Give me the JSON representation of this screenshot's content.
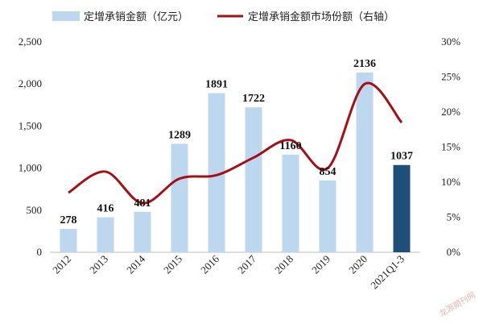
{
  "chart_data": {
    "type": "bar",
    "title": "",
    "categories": [
      "2012",
      "2013",
      "2014",
      "2015",
      "2016",
      "2017",
      "2018",
      "2019",
      "2020",
      "2021Q1-3"
    ],
    "series": [
      {
        "name": "定增承销金额（亿元）",
        "type": "bar",
        "axis": "left",
        "values": [
          278,
          416,
          481,
          1289,
          1891,
          1722,
          1160,
          854,
          2136,
          1037
        ],
        "data_labels": [
          "278",
          "416",
          "481",
          "1289",
          "1891",
          "1722",
          "1160",
          "854",
          "2136",
          "1037"
        ],
        "color": "#bdd7ee",
        "highlight_last_color": "#1f4e79"
      },
      {
        "name": "定增承销金额市场份额（右轴）",
        "type": "line",
        "axis": "right",
        "values": [
          8.5,
          11.5,
          7.0,
          10.5,
          11.0,
          13.5,
          16.0,
          12.0,
          24.0,
          18.5
        ],
        "color": "#a50f15"
      }
    ],
    "y_left": {
      "ylim": [
        0,
        2500
      ],
      "ticks": [
        0,
        500,
        1000,
        1500,
        2000,
        2500
      ],
      "tick_labels": [
        "0",
        "500",
        "1,000",
        "1,500",
        "2,000",
        "2,500"
      ]
    },
    "y_right": {
      "ylim": [
        0,
        30
      ],
      "ticks": [
        0,
        5,
        10,
        15,
        20,
        25,
        30
      ],
      "tick_labels": [
        "0%",
        "5%",
        "10%",
        "15%",
        "20%",
        "25%",
        "30%"
      ]
    },
    "legend": "top-center",
    "grid": false
  },
  "watermark": "龙源期刊网"
}
